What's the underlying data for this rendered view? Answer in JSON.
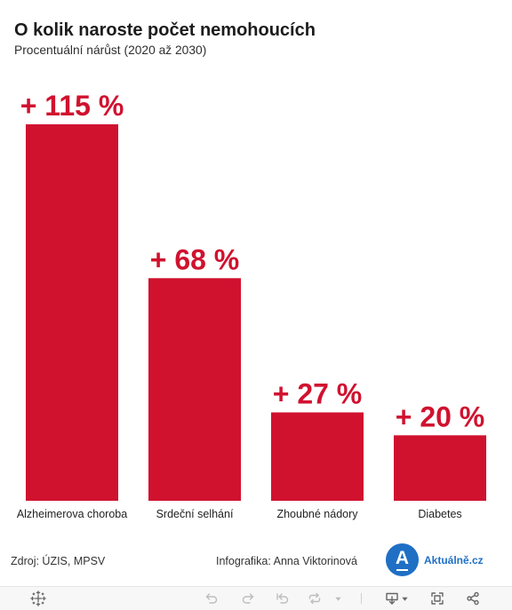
{
  "chart_data": {
    "type": "bar",
    "title": "O kolik naroste počet nemohoucích",
    "subtitle": "Procentuální nárůst (2020 až 2030)",
    "categories": [
      "Alzheimerova choroba",
      "Srdeční selhání",
      "Zhoubné nádory",
      "Diabetes"
    ],
    "values": [
      115,
      68,
      27,
      20
    ],
    "data_labels": [
      "+ 115 %",
      "+ 68 %",
      "+ 27 %",
      "+ 20 %"
    ],
    "xlabel": "",
    "ylabel": "",
    "ylim": [
      0,
      115
    ],
    "grid": false,
    "bar_color": "#d0122f",
    "label_color": "#d0122f"
  },
  "footer": {
    "source": "Zdroj: ÚZIS, MPSV",
    "credit": "Infografika: Anna Viktorinová",
    "logo": {
      "letter": "A",
      "text": "Aktuálně.cz",
      "color": "#1f6fc5"
    }
  },
  "toolbar": {
    "buttons": [
      {
        "icon": "tableau-logo-icon",
        "disabled": false
      },
      {
        "icon": "undo-icon",
        "disabled": true
      },
      {
        "icon": "redo-icon",
        "disabled": true
      },
      {
        "icon": "revert-icon",
        "disabled": true
      },
      {
        "icon": "refresh-icon",
        "disabled": true
      },
      {
        "icon": "chevron-down-icon",
        "disabled": true
      },
      {
        "icon": "download-icon",
        "disabled": false
      },
      {
        "icon": "fullscreen-icon",
        "disabled": false
      },
      {
        "icon": "share-icon",
        "disabled": false
      }
    ]
  }
}
